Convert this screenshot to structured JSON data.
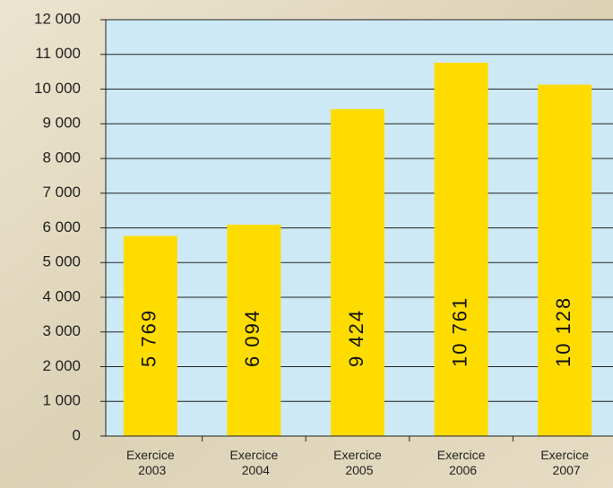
{
  "chart_data": {
    "type": "bar",
    "categories": [
      "Exercice 2003",
      "Exercice 2004",
      "Exercice 2005",
      "Exercice 2006",
      "Exercice 2007"
    ],
    "values": [
      5769,
      6094,
      9424,
      10761,
      10128
    ],
    "value_labels": [
      "5 769",
      "6 094",
      "9 424",
      "10 761",
      "10 128"
    ],
    "color": "#ffdc00",
    "ylim": [
      0,
      12000
    ],
    "yticks": [
      0,
      {
        "value": 1000,
        "label": "1 000"
      },
      {
        "value": 2000,
        "label": "2 000"
      },
      {
        "value": 3000,
        "label": "3 000"
      },
      {
        "value": 4000,
        "label": "4 000"
      },
      {
        "value": 5000,
        "label": "5 000"
      },
      {
        "value": 6000,
        "label": "6 000"
      },
      {
        "value": 7000,
        "label": "7 000"
      },
      {
        "value": 8000,
        "label": "8 000"
      },
      {
        "value": 9000,
        "label": "9 000"
      },
      {
        "value": 10000,
        "label": "10 000"
      },
      {
        "value": 11000,
        "label": "11 000"
      },
      {
        "value": 12000,
        "label": "12 000"
      }
    ],
    "grid": true
  }
}
